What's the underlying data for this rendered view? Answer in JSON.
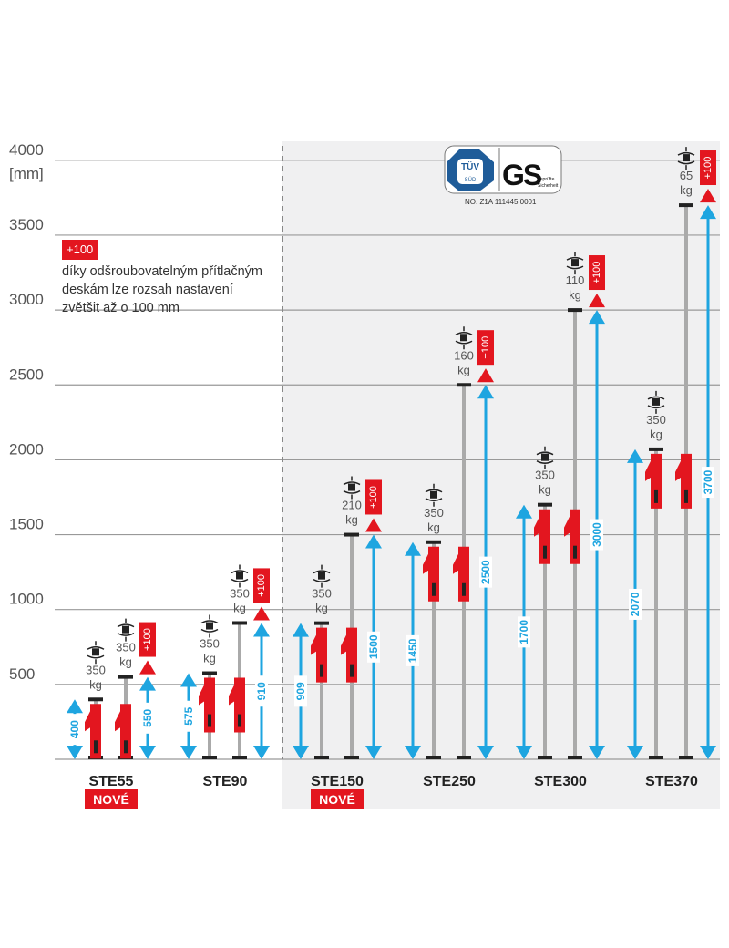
{
  "axis": {
    "unit": "[mm]",
    "ticks": [
      500,
      1000,
      1500,
      2000,
      2500,
      3000,
      3500,
      4000
    ],
    "tick_labels": [
      "500",
      "1000",
      "1500",
      "2000",
      "2500",
      "3000",
      "3500",
      "4000"
    ]
  },
  "note": {
    "badge": "+100",
    "lines": [
      "díky odšroubovatelným přítlačným",
      "deskám lze rozsah nastavení",
      "zvětšit až o 100 mm"
    ]
  },
  "certification": {
    "logo_tuv": "TÜV SÜD",
    "logo_gs": "GS geprüfte Sicherheit",
    "number": "NO. Z1A 111445 0001"
  },
  "extension_label": "+100",
  "new_label": "NOVÉ",
  "load_unit": "kg",
  "colors": {
    "red": "#e3161f",
    "blue": "#1ea5e0",
    "grid": "#999999",
    "panel": "#f0f0f1"
  },
  "products": [
    {
      "name": "STE55",
      "min": "400",
      "max": "550",
      "load_min": "350",
      "load_max": "350",
      "new": true
    },
    {
      "name": "STE90",
      "min": "575",
      "max": "910",
      "load_min": "350",
      "load_max": "350",
      "new": false
    },
    {
      "name": "STE150",
      "min": "909",
      "max": "1500",
      "load_min": "350",
      "load_max": "210",
      "new": true
    },
    {
      "name": "STE250",
      "min": "1450",
      "max": "2500",
      "load_min": "350",
      "load_max": "160",
      "new": false
    },
    {
      "name": "STE300",
      "min": "1700",
      "max": "3000",
      "load_min": "350",
      "load_max": "110",
      "new": false
    },
    {
      "name": "STE370",
      "min": "2070",
      "max": "3700",
      "load_min": "350",
      "load_max": "65",
      "new": false
    }
  ]
}
